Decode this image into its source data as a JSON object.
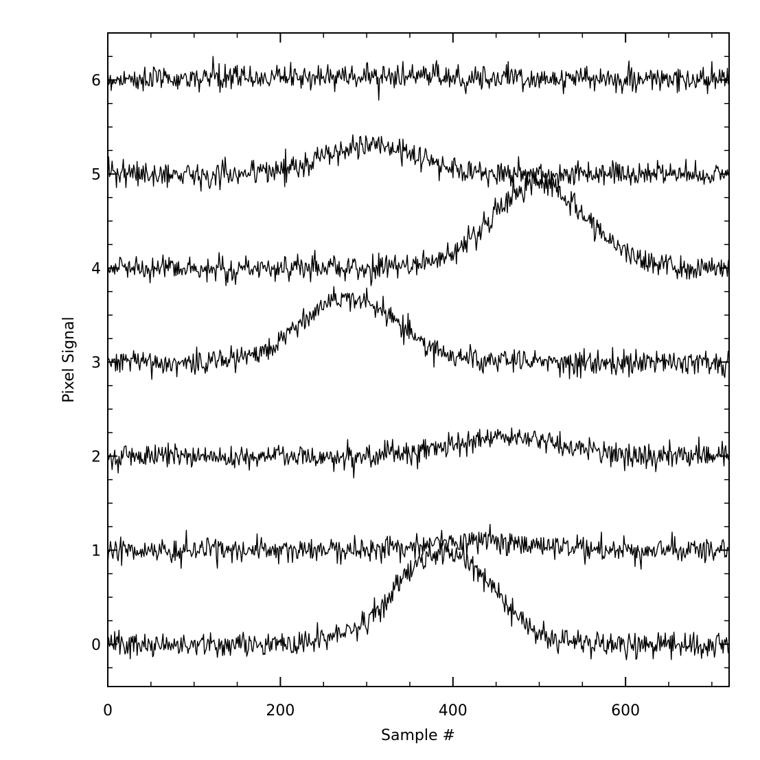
{
  "chart_data": {
    "type": "line",
    "xlabel": "Sample #",
    "ylabel": "Pixel Signal",
    "xlim": [
      0,
      720
    ],
    "ylim": [
      -0.45,
      6.5
    ],
    "x_ticks": [
      0,
      200,
      400,
      600
    ],
    "y_ticks": [
      0,
      1,
      2,
      3,
      4,
      5,
      6
    ],
    "x_minor_step": 50,
    "y_minor_step": 0.25,
    "grid": false,
    "line_color": "#000000",
    "noise_amplitude": 0.065,
    "series": [
      {
        "offset": 6,
        "peak_x": 300,
        "peak_amplitude": 0.04,
        "peak_sigma": 150
      },
      {
        "offset": 5,
        "peak_x": 305,
        "peak_amplitude": 0.3,
        "peak_sigma": 55
      },
      {
        "offset": 4,
        "peak_x": 500,
        "peak_amplitude": 0.9,
        "peak_sigma": 55
      },
      {
        "offset": 3,
        "peak_x": 280,
        "peak_amplitude": 0.7,
        "peak_sigma": 55
      },
      {
        "offset": 2,
        "peak_x": 465,
        "peak_amplitude": 0.2,
        "peak_sigma": 60
      },
      {
        "offset": 1,
        "peak_x": 420,
        "peak_amplitude": 0.1,
        "peak_sigma": 55
      },
      {
        "offset": 0,
        "peak_x": 390,
        "peak_amplitude": 1.0,
        "peak_sigma": 55
      }
    ]
  }
}
